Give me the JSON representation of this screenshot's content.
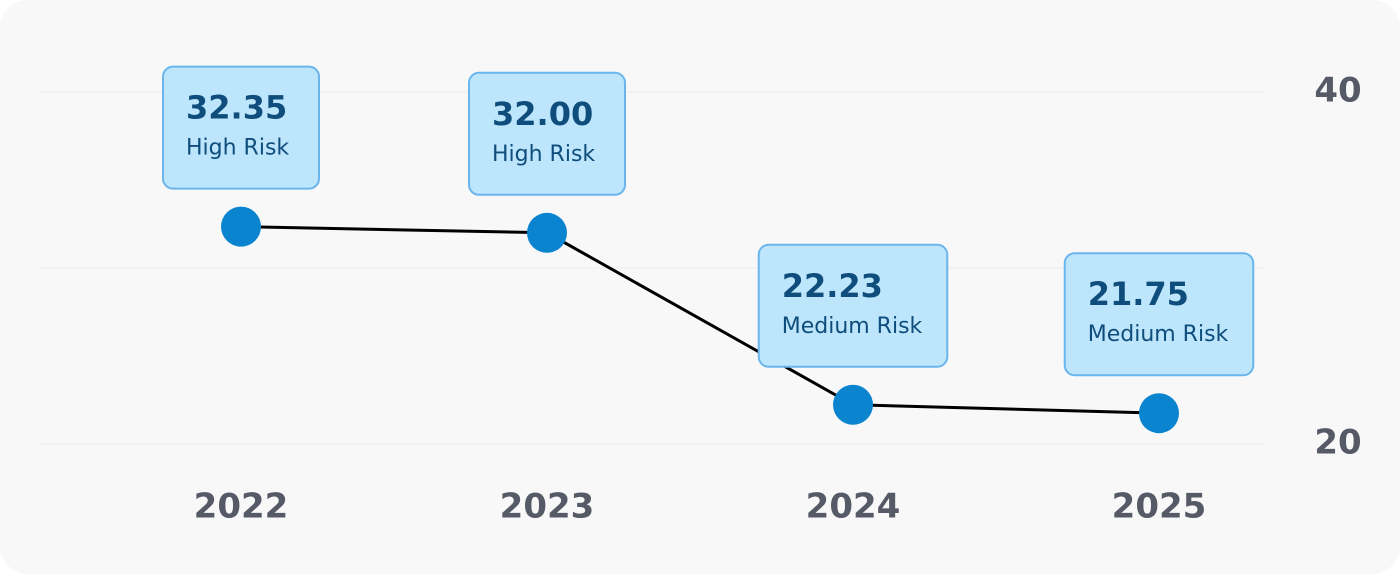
{
  "chart_data": {
    "type": "line",
    "categories": [
      "2022",
      "2023",
      "2024",
      "2025"
    ],
    "values": [
      32.35,
      32.0,
      22.23,
      21.75
    ],
    "value_labels": [
      "32.35",
      "32.00",
      "22.23",
      "21.75"
    ],
    "risk_labels": [
      "High Risk",
      "High Risk",
      "Medium Risk",
      "Medium Risk"
    ],
    "color": "#0a84cf",
    "line_color": "#000000",
    "ylim": [
      20,
      40
    ],
    "yticks": [
      20,
      40
    ],
    "ygrid": [
      20,
      30,
      40
    ],
    "grid": true
  }
}
